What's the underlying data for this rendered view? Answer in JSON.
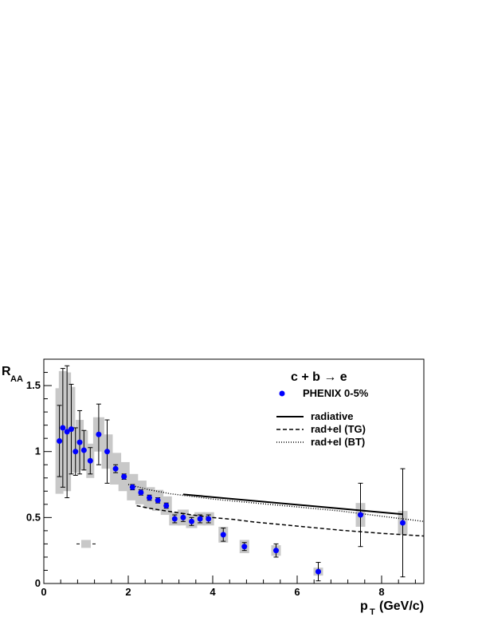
{
  "chart_data": {
    "type": "scatter",
    "ylabel": "R",
    "ylabel_sub": "AA",
    "xlabel": "p",
    "xlabel_sub": "T",
    "xlabel_units": "(GeV/c)",
    "xlim": [
      0,
      9
    ],
    "ylim": [
      0,
      1.7
    ],
    "x_ticks": [
      "0",
      "2",
      "4",
      "6",
      "8"
    ],
    "y_ticks": [
      "0",
      "0.5",
      "1",
      "1.5"
    ],
    "legend": {
      "title": "c + b → e",
      "entries": [
        "PHENIX 0-5%",
        "radiative",
        "rad+el (TG)",
        "rad+el (BT)"
      ]
    },
    "colors": {
      "points": "#0000ff",
      "systematic": "#c8c8c8",
      "lines": "#000000"
    },
    "series": [
      {
        "name": "PHENIX 0-5%",
        "x": [
          0.37,
          0.45,
          0.55,
          0.65,
          0.75,
          0.85,
          0.95,
          1.1,
          1.3,
          1.5,
          1.7,
          1.9,
          2.1,
          2.3,
          2.5,
          2.7,
          2.9,
          3.1,
          3.3,
          3.5,
          3.7,
          3.9,
          4.25,
          4.75,
          5.5,
          6.5,
          7.5,
          8.5
        ],
        "y": [
          1.08,
          1.18,
          1.15,
          1.17,
          1.0,
          1.07,
          1.01,
          0.93,
          1.13,
          1.0,
          0.87,
          0.81,
          0.73,
          0.69,
          0.65,
          0.63,
          0.59,
          0.49,
          0.5,
          0.47,
          0.49,
          0.49,
          0.37,
          0.28,
          0.25,
          0.09,
          0.52,
          0.46
        ],
        "stat_err": [
          0.27,
          0.45,
          0.5,
          0.34,
          0.18,
          0.24,
          0.15,
          0.1,
          0.23,
          0.24,
          0.03,
          0.02,
          0.02,
          0.02,
          0.02,
          0.02,
          0.02,
          0.03,
          0.03,
          0.03,
          0.03,
          0.03,
          0.05,
          0.03,
          0.05,
          0.07,
          0.24,
          0.41
        ],
        "sys_err": [
          0.4,
          0.43,
          0.45,
          0.32,
          0.16,
          0.17,
          0.15,
          0.13,
          0.13,
          0.13,
          0.12,
          0.11,
          0.1,
          0.09,
          0.08,
          0.08,
          0.07,
          0.05,
          0.06,
          0.05,
          0.05,
          0.05,
          0.06,
          0.05,
          0.04,
          0.03,
          0.09,
          0.09
        ]
      },
      {
        "name": "radiative",
        "style": "solid",
        "x": [
          3.3,
          8.5
        ],
        "y": [
          0.675,
          0.525
        ]
      },
      {
        "name": "rad+el (TG)",
        "style": "dashed",
        "x": [
          2.2,
          2.5,
          3.0,
          3.5,
          4.0,
          4.5,
          5.0,
          6.0,
          7.0,
          8.0,
          9.0
        ],
        "y": [
          0.59,
          0.57,
          0.545,
          0.52,
          0.5,
          0.485,
          0.465,
          0.435,
          0.405,
          0.38,
          0.36
        ]
      },
      {
        "name": "rad+el (BT)",
        "style": "dotted",
        "x": [
          2.0,
          2.5,
          3.0,
          3.5,
          4.0,
          5.0,
          6.0,
          7.0,
          8.0,
          9.0
        ],
        "y": [
          0.75,
          0.71,
          0.68,
          0.66,
          0.64,
          0.61,
          0.58,
          0.55,
          0.51,
          0.47
        ]
      }
    ],
    "normalization_box": {
      "x": 1.0,
      "y": 0.3,
      "err": 0.03
    },
    "grid": false,
    "legend_position": "top-right"
  }
}
